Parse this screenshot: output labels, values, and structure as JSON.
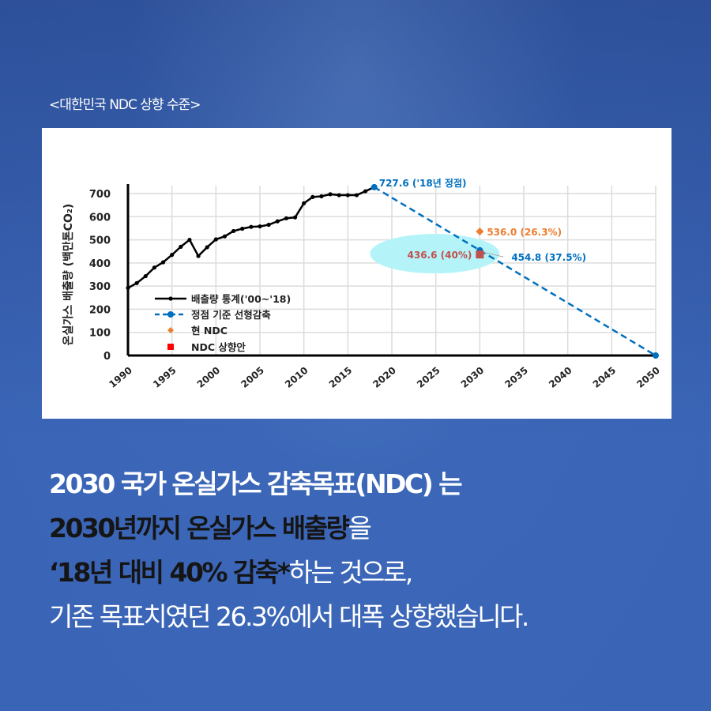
{
  "subtitle": "<대한민국 NDC 상향 수준>",
  "chart_data": {
    "type": "line",
    "title": "",
    "ylabel": "온실가스 배출량 (백만톤CO₂)",
    "xlabel": "",
    "xlim": [
      1990,
      2050
    ],
    "ylim": [
      0,
      700
    ],
    "grid": true,
    "x_ticks": [
      1990,
      1995,
      2000,
      2005,
      2010,
      2015,
      2020,
      2025,
      2030,
      2035,
      2040,
      2045,
      2050
    ],
    "y_ticks": [
      0,
      100,
      200,
      300,
      400,
      500,
      600,
      700
    ],
    "legend_position": "lower-left",
    "series": [
      {
        "name": "배출량 통계('00~'18)",
        "color": "#000000",
        "x": [
          1990,
          1991,
          1992,
          1993,
          1994,
          1995,
          1996,
          1997,
          1998,
          1999,
          2000,
          2001,
          2002,
          2003,
          2004,
          2005,
          2006,
          2007,
          2008,
          2009,
          2010,
          2011,
          2012,
          2013,
          2014,
          2015,
          2016,
          2017,
          2018
        ],
        "values": [
          292,
          313,
          343,
          380,
          403,
          435,
          470,
          500,
          430,
          468,
          502,
          515,
          538,
          548,
          556,
          558,
          565,
          580,
          593,
          597,
          658,
          685,
          688,
          697,
          693,
          693,
          693,
          710,
          727.6
        ]
      },
      {
        "name": "정점 기준 선형감축",
        "color": "#0070c0",
        "x": [
          2018,
          2030,
          2050
        ],
        "values": [
          727.6,
          454.8,
          0
        ]
      },
      {
        "name": "현 NDC",
        "color": "#ed7d31",
        "x": [
          2030
        ],
        "values": [
          536.0
        ]
      },
      {
        "name": "NDC 상향안",
        "color": "#c0504d",
        "x": [
          2030
        ],
        "values": [
          436.6
        ]
      }
    ],
    "annotations": {
      "peak": "727.6 ('18년 정점)",
      "current_ndc": "536.0 (26.3%)",
      "linear": "454.8 (37.5%)",
      "raised_ndc": "436.6 (40%)"
    }
  },
  "text": {
    "line1": "2030 국가 온실가스 감축목표(NDC) 는",
    "line2_bold": "2030년까지 온실가스 배출량",
    "line2_rest": "을",
    "line3_bold": "‘18년 대비 40% 감축*",
    "line3_rest": "하는 것으로,",
    "line4": "기존 목표치였던 26.3%에서 대폭 상향했습니다."
  }
}
